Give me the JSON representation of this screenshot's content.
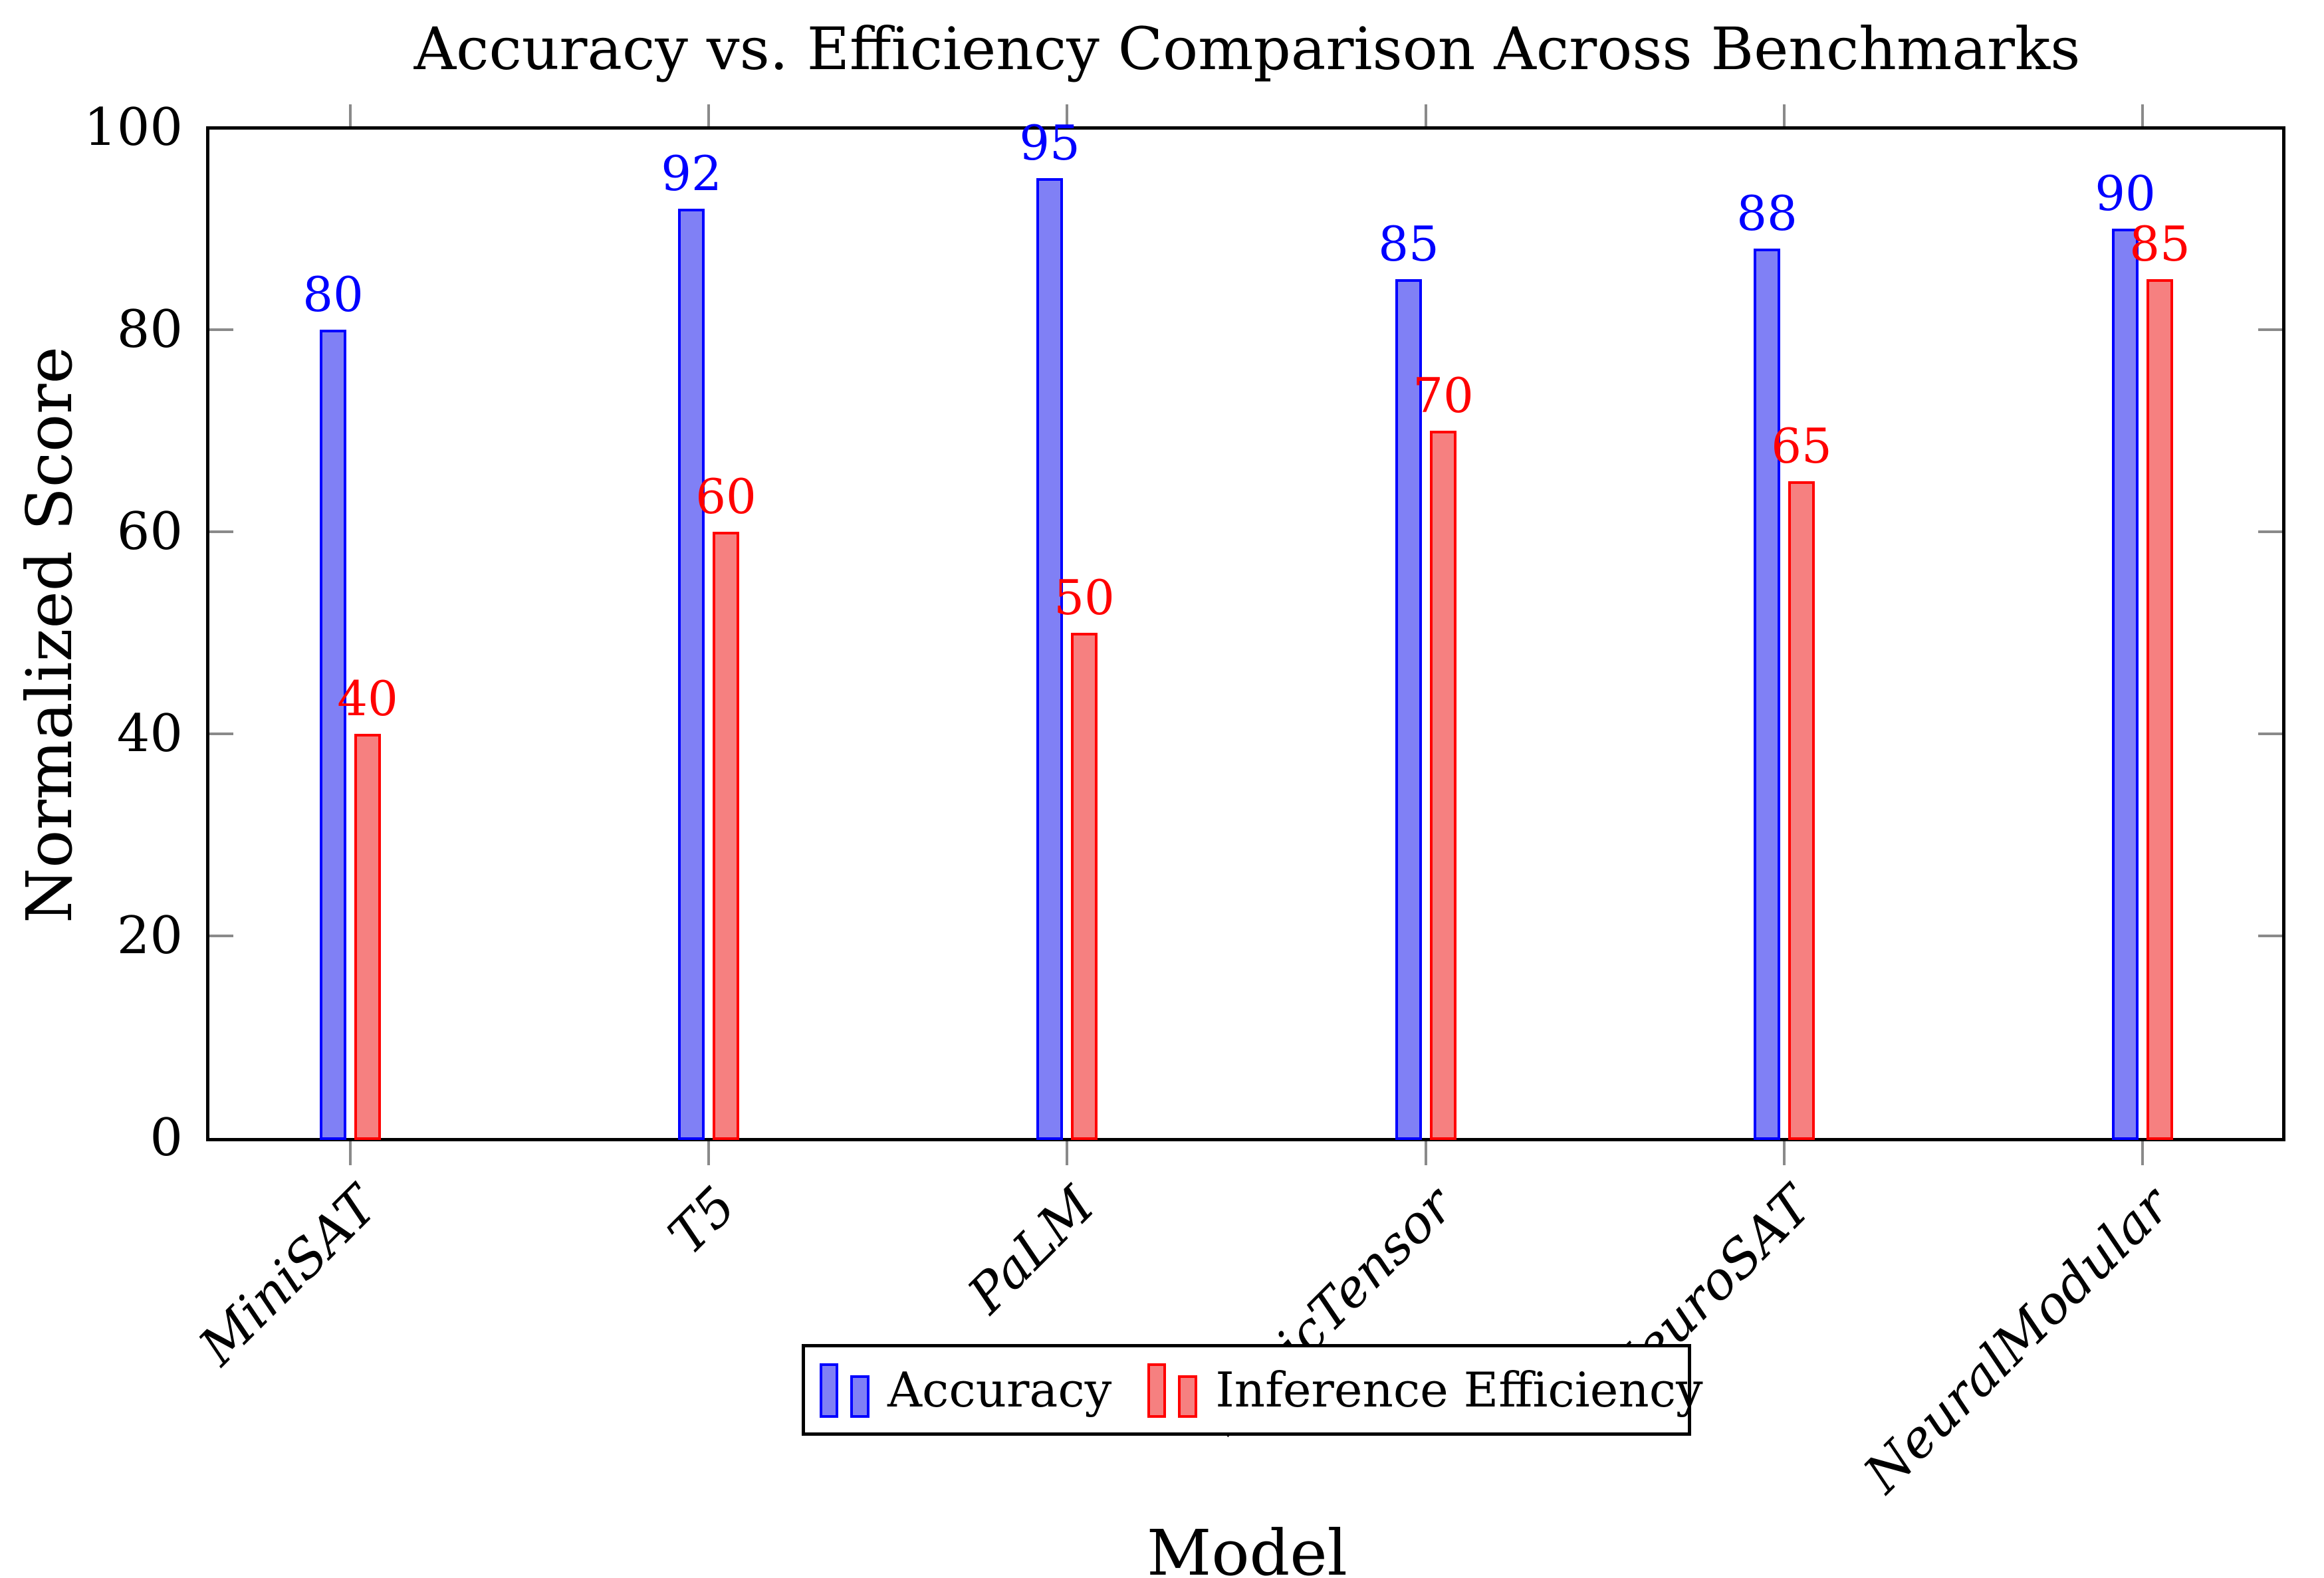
{
  "figure": {
    "title": "Accuracy vs. Efficiency Comparison Across Benchmarks",
    "xlabel": "Model",
    "ylabel": "Normalized Score"
  },
  "chart_data": {
    "type": "bar",
    "title": "Accuracy vs. Efficiency Comparison Across Benchmarks",
    "xlabel": "Model",
    "ylabel": "Normalized Score",
    "categories": [
      "MiniSAT",
      "T5",
      "PaLM",
      "LogicTensor",
      "NeuroSAT",
      "NeuralModular"
    ],
    "series": [
      {
        "name": "Accuracy",
        "values": [
          80,
          92,
          95,
          85,
          88,
          90
        ],
        "edge_color": "#0000ff",
        "fill_color": "#8080f5"
      },
      {
        "name": "Inference Efficiency",
        "values": [
          40,
          60,
          50,
          70,
          65,
          85
        ],
        "edge_color": "#ff0000",
        "fill_color": "#f68080"
      }
    ],
    "bar_value_labels_shown": true,
    "ylim": [
      0,
      100
    ],
    "yticks": [
      0,
      20,
      40,
      60,
      80,
      100
    ],
    "grid": false,
    "legend": {
      "position": "bottom-center",
      "entries": [
        "Accuracy",
        "Inference Efficiency"
      ]
    },
    "axis_colors": {
      "frame": "#000000",
      "ticks": "#8a8a8a",
      "accuracy_accent": "#0000ff",
      "efficiency_accent": "#ff0000"
    }
  }
}
